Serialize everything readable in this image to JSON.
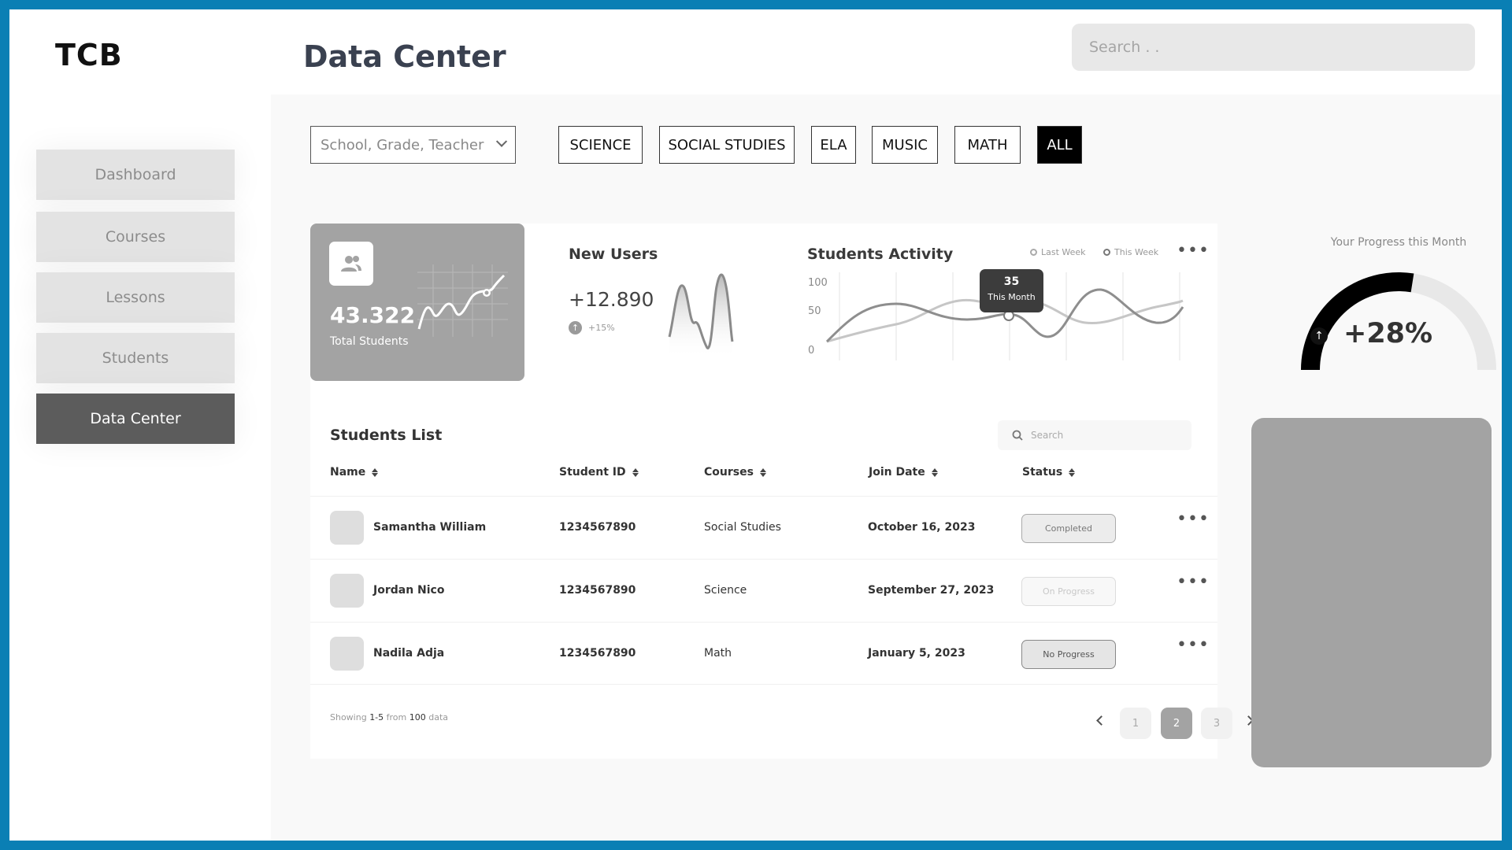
{
  "brand": "TCB",
  "page_title": "Data Center",
  "search": {
    "placeholder": "Search . ."
  },
  "sidebar": {
    "items": [
      {
        "label": "Dashboard"
      },
      {
        "label": "Courses"
      },
      {
        "label": "Lessons"
      },
      {
        "label": "Students"
      },
      {
        "label": "Data Center",
        "active": true
      }
    ]
  },
  "filters": {
    "select_value": "School, Grade, Teacher",
    "subjects": [
      "SCIENCE",
      "SOCIAL STUDIES",
      "ELA",
      "MUSIC",
      "MATH",
      "ALL"
    ],
    "active": "ALL"
  },
  "total_students": {
    "value": "43.322",
    "label": "Total Students",
    "icon": "users-icon"
  },
  "new_users": {
    "title": "New Users",
    "value": "+12.890",
    "change": "+15%",
    "change_icon": "arrow-up-icon"
  },
  "activity": {
    "title": "Students Activity",
    "legend": [
      "Last Week",
      "This Week"
    ],
    "y_ticks": [
      "100",
      "50",
      "0"
    ],
    "tooltip_value": "35",
    "tooltip_label": "This Month"
  },
  "students_list": {
    "title": "Students List",
    "search_placeholder": "Search",
    "columns": [
      "Name",
      "Student ID",
      "Courses",
      "Join Date",
      "Status"
    ],
    "rows": [
      {
        "name": "Samantha William",
        "id": "1234567890",
        "course": "Social Studies",
        "date": "October 16, 2023",
        "status": "Completed"
      },
      {
        "name": "Jordan Nico",
        "id": "1234567890",
        "course": "Science",
        "date": "September 27, 2023",
        "status": "On Progress"
      },
      {
        "name": "Nadila Adja",
        "id": "1234567890",
        "course": "Math",
        "date": "January 5, 2023",
        "status": "No Progress"
      }
    ],
    "showing_prefix": "Showing ",
    "showing_range": "1-5",
    "showing_mid": " from ",
    "showing_total": "100",
    "showing_suffix": " data",
    "pages": [
      "1",
      "2",
      "3"
    ],
    "current_page": "2"
  },
  "progress": {
    "label": "Your Progress this Month",
    "value": "+28%",
    "fraction": 0.55
  },
  "colors": {
    "frame": "#0a7fb4",
    "active_nav": "#5c5c5c",
    "card_gray": "#a3a3a3"
  }
}
